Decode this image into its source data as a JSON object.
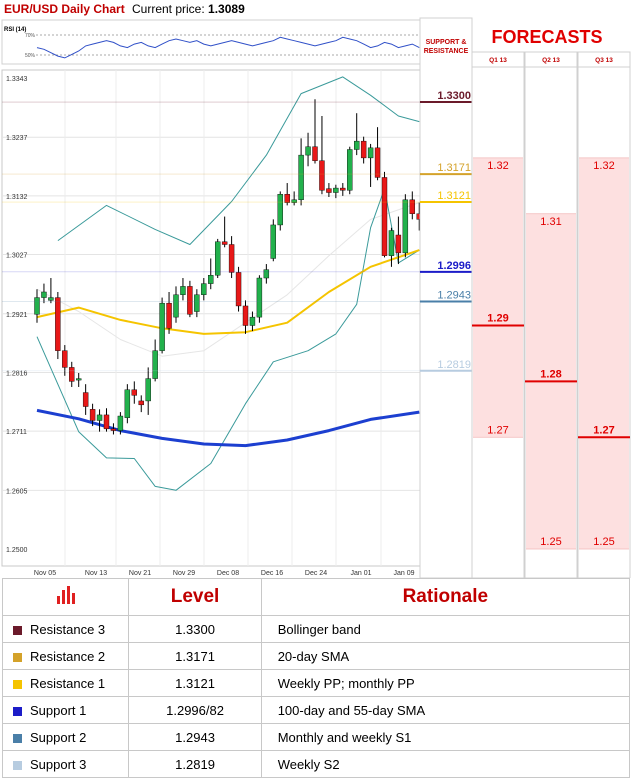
{
  "header": {
    "title": "EUR/USD Daily Chart",
    "price_label": "Current price:",
    "price_value": "1.3089"
  },
  "rsi": {
    "label": "RSI (14)",
    "level_high": "70%",
    "level_low": "50%"
  },
  "forecasts": {
    "title": "FORECASTS",
    "sr_label": "SUPPORT & RESISTANCE",
    "quarters": [
      "Q1 13",
      "Q2 13",
      "Q3 13"
    ]
  },
  "colors": {
    "resistance3": "#6b1a2a",
    "resistance2": "#d4a22a",
    "resistance1": "#f5c400",
    "support1": "#1c1cc8",
    "support2": "#4a7fa8",
    "support3": "#b7cce0",
    "forecast_fill": "#fde0e0",
    "forecast_line": "#e00000"
  },
  "chart_data": {
    "type": "candlestick",
    "title": "EUR/USD Daily Chart",
    "x_ticks": [
      "Nov 05",
      "Nov 13",
      "Nov 21",
      "Nov 29",
      "Dec 08",
      "Dec 16",
      "Dec 24",
      "Jan 01",
      "Jan 09"
    ],
    "y_ticks": [
      "1.3343",
      "1.3237",
      "1.3132",
      "1.3027",
      "1.2921",
      "1.2816",
      "1.2711",
      "1.2605",
      "1.2500"
    ],
    "ylim": [
      1.25,
      1.3343
    ],
    "candles": [
      [
        1.292,
        1.2965,
        1.2905,
        1.295
      ],
      [
        1.295,
        1.2975,
        1.294,
        1.296
      ],
      [
        1.2945,
        1.2985,
        1.294,
        1.295
      ],
      [
        1.295,
        1.296,
        1.284,
        1.2855
      ],
      [
        1.2855,
        1.2865,
        1.281,
        1.2825
      ],
      [
        1.2825,
        1.2835,
        1.279,
        1.28
      ],
      [
        1.2805,
        1.2815,
        1.279,
        1.2805
      ],
      [
        1.278,
        1.2795,
        1.274,
        1.2755
      ],
      [
        1.275,
        1.276,
        1.272,
        1.273
      ],
      [
        1.273,
        1.275,
        1.271,
        1.274
      ],
      [
        1.274,
        1.2752,
        1.271,
        1.2715
      ],
      [
        1.2715,
        1.2725,
        1.2705,
        1.2712
      ],
      [
        1.2712,
        1.2745,
        1.2705,
        1.2738
      ],
      [
        1.2735,
        1.2795,
        1.2725,
        1.2785
      ],
      [
        1.2785,
        1.28,
        1.276,
        1.2775
      ],
      [
        1.2765,
        1.2775,
        1.2745,
        1.2758
      ],
      [
        1.2765,
        1.2825,
        1.274,
        1.2805
      ],
      [
        1.2805,
        1.2875,
        1.28,
        1.2855
      ],
      [
        1.2855,
        1.295,
        1.285,
        1.294
      ],
      [
        1.294,
        1.296,
        1.2885,
        1.2895
      ],
      [
        1.2915,
        1.297,
        1.2905,
        1.2955
      ],
      [
        1.2955,
        1.2985,
        1.2945,
        1.297
      ],
      [
        1.297,
        1.298,
        1.2915,
        1.292
      ],
      [
        1.2925,
        1.2965,
        1.2915,
        1.2955
      ],
      [
        1.2955,
        1.2985,
        1.2945,
        1.2975
      ],
      [
        1.2975,
        1.302,
        1.2965,
        1.299
      ],
      [
        1.299,
        1.3055,
        1.2985,
        1.305
      ],
      [
        1.305,
        1.3095,
        1.304,
        1.3045
      ],
      [
        1.3045,
        1.306,
        1.2985,
        1.2995
      ],
      [
        1.2995,
        1.3005,
        1.2925,
        1.2935
      ],
      [
        1.2935,
        1.2945,
        1.2885,
        1.29
      ],
      [
        1.29,
        1.2925,
        1.289,
        1.2915
      ],
      [
        1.2915,
        1.299,
        1.2905,
        1.2985
      ],
      [
        1.2985,
        1.301,
        1.2975,
        1.3
      ],
      [
        1.302,
        1.309,
        1.3015,
        1.308
      ],
      [
        1.308,
        1.314,
        1.307,
        1.3135
      ],
      [
        1.3135,
        1.3155,
        1.3115,
        1.312
      ],
      [
        1.312,
        1.314,
        1.3115,
        1.3125
      ],
      [
        1.3125,
        1.3235,
        1.3115,
        1.3205
      ],
      [
        1.3205,
        1.3245,
        1.3185,
        1.322
      ],
      [
        1.322,
        1.3305,
        1.319,
        1.3195
      ],
      [
        1.3195,
        1.3275,
        1.3135,
        1.3142
      ],
      [
        1.3145,
        1.3155,
        1.313,
        1.3138
      ],
      [
        1.3138,
        1.3152,
        1.3128,
        1.3146
      ],
      [
        1.3146,
        1.3155,
        1.3132,
        1.3142
      ],
      [
        1.3142,
        1.322,
        1.3135,
        1.3215
      ],
      [
        1.3215,
        1.328,
        1.3205,
        1.323
      ],
      [
        1.323,
        1.3238,
        1.319,
        1.32
      ],
      [
        1.32,
        1.3225,
        1.3148,
        1.3218
      ],
      [
        1.3218,
        1.3255,
        1.316,
        1.3165
      ],
      [
        1.3165,
        1.3175,
        1.3022,
        1.3025
      ],
      [
        1.3025,
        1.3075,
        1.3005,
        1.307
      ],
      [
        1.3062,
        1.3095,
        1.301,
        1.303
      ],
      [
        1.303,
        1.3135,
        1.3022,
        1.3125
      ],
      [
        1.3125,
        1.314,
        1.309,
        1.31
      ],
      [
        1.31,
        1.312,
        1.307,
        1.309
      ]
    ],
    "series": [
      {
        "name": "20-day SMA",
        "points": [
          [
            0,
            1.2965
          ],
          [
            6,
            1.2925
          ],
          [
            12,
            1.2875
          ],
          [
            18,
            1.2845
          ],
          [
            24,
            1.2855
          ],
          [
            30,
            1.2905
          ],
          [
            36,
            1.2955
          ],
          [
            42,
            1.3025
          ],
          [
            48,
            1.309
          ],
          [
            55,
            1.312
          ]
        ]
      },
      {
        "name": "Bollinger upper",
        "points": [
          [
            3,
            1.3052
          ],
          [
            10,
            1.3115
          ],
          [
            17,
            1.3072
          ],
          [
            22,
            1.3045
          ],
          [
            28,
            1.3122
          ],
          [
            33,
            1.3205
          ],
          [
            38,
            1.3315
          ],
          [
            44,
            1.3345
          ],
          [
            48,
            1.3312
          ],
          [
            52,
            1.3275
          ],
          [
            55,
            1.3265
          ]
        ]
      },
      {
        "name": "Bollinger lower",
        "points": [
          [
            0,
            1.288
          ],
          [
            6,
            1.271
          ],
          [
            10,
            1.2663
          ],
          [
            14,
            1.2662
          ],
          [
            17,
            1.2612
          ],
          [
            20,
            1.2605
          ],
          [
            25,
            1.2653
          ],
          [
            30,
            1.276
          ],
          [
            34,
            1.2835
          ],
          [
            39,
            1.2855
          ],
          [
            43,
            1.2885
          ],
          [
            46,
            1.2938
          ],
          [
            48,
            1.3075
          ],
          [
            50,
            1.3145
          ],
          [
            52,
            1.3012
          ],
          [
            55,
            1.3035
          ]
        ]
      },
      {
        "name": "55-day SMA",
        "points": [
          [
            0,
            1.2915
          ],
          [
            6,
            1.2932
          ],
          [
            12,
            1.291
          ],
          [
            18,
            1.2895
          ],
          [
            24,
            1.2885
          ],
          [
            30,
            1.2888
          ],
          [
            36,
            1.2905
          ],
          [
            42,
            1.296
          ],
          [
            48,
            1.3005
          ],
          [
            55,
            1.3035
          ]
        ]
      },
      {
        "name": "100-day SMA",
        "points": [
          [
            0,
            1.2748
          ],
          [
            6,
            1.2733
          ],
          [
            12,
            1.2712
          ],
          [
            18,
            1.2698
          ],
          [
            24,
            1.2688
          ],
          [
            30,
            1.2685
          ],
          [
            36,
            1.2695
          ],
          [
            42,
            1.2712
          ],
          [
            48,
            1.2732
          ],
          [
            55,
            1.2745
          ]
        ]
      }
    ],
    "rsi_values": [
      58,
      56,
      52,
      48,
      46,
      50,
      54,
      60,
      62,
      64,
      66,
      64,
      60,
      58,
      62,
      64,
      60,
      58,
      62,
      66,
      68,
      66,
      64,
      66,
      62,
      60,
      62,
      64,
      66,
      64,
      62,
      60,
      62,
      64,
      66,
      70,
      68,
      66,
      64,
      62,
      60,
      62,
      64,
      66,
      70,
      68,
      66,
      62,
      58,
      60,
      64,
      62,
      58,
      60,
      62,
      58
    ]
  },
  "levels": [
    {
      "price": "1.3300",
      "value": 1.33,
      "color": "#6b1a2a",
      "bold": true
    },
    {
      "price": "1.3171",
      "value": 1.3171,
      "color": "#d4a22a",
      "bold": false
    },
    {
      "price": "1.3121",
      "value": 1.3121,
      "color": "#f5c400",
      "bold": false
    },
    {
      "price": "1.2996",
      "value": 1.2996,
      "color": "#1c1cc8",
      "bold": true
    },
    {
      "price": "1.2943",
      "value": 1.2943,
      "color": "#4a7fa8",
      "bold": false
    },
    {
      "price": "1.2819",
      "value": 1.2819,
      "color": "#b7cce0",
      "bold": false
    }
  ],
  "forecast_columns": [
    {
      "quarter": "Q1 13",
      "range": [
        1.27,
        1.32
      ],
      "center": 1.29,
      "labels": [
        {
          "text": "1.32",
          "value": 1.32
        },
        {
          "text": "1.29",
          "value": 1.29,
          "bold": true
        },
        {
          "text": "1.27",
          "value": 1.27
        }
      ]
    },
    {
      "quarter": "Q2 13",
      "range": [
        1.25,
        1.31
      ],
      "center": 1.28,
      "labels": [
        {
          "text": "1.31",
          "value": 1.31
        },
        {
          "text": "1.28",
          "value": 1.28,
          "bold": true
        },
        {
          "text": "1.25",
          "value": 1.25
        }
      ]
    },
    {
      "quarter": "Q3 13",
      "range": [
        1.25,
        1.32
      ],
      "center": 1.27,
      "labels": [
        {
          "text": "1.32",
          "value": 1.32
        },
        {
          "text": "1.27",
          "value": 1.27,
          "bold": true
        },
        {
          "text": "1.25",
          "value": 1.25
        }
      ]
    }
  ],
  "table": {
    "headers": {
      "level": "Level",
      "rationale": "Rationale"
    },
    "rows": [
      {
        "name": "Resistance 3",
        "level": "1.3300",
        "rationale": "Bollinger band",
        "color": "#6b1a2a"
      },
      {
        "name": "Resistance 2",
        "level": "1.3171",
        "rationale": "20-day SMA",
        "color": "#d4a22a"
      },
      {
        "name": "Resistance 1",
        "level": "1.3121",
        "rationale": "Weekly PP; monthly PP",
        "color": "#f5c400"
      },
      {
        "name": "Support 1",
        "level": "1.2996/82",
        "rationale": "100-day and 55-day SMA",
        "color": "#1c1cc8"
      },
      {
        "name": "Support 2",
        "level": "1.2943",
        "rationale": "Monthly and weekly S1",
        "color": "#4a7fa8"
      },
      {
        "name": "Support 3",
        "level": "1.2819",
        "rationale": "Weekly S2",
        "color": "#b7cce0"
      }
    ]
  }
}
